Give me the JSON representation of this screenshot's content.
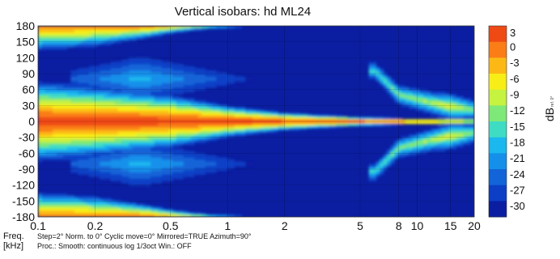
{
  "chart_data": {
    "type": "heatmap",
    "title": "Vertical isobars: hd ML24",
    "xlabel": "Freq. [kHz]",
    "xlabel_line1": "Freq.",
    "xlabel_line2": "[kHz]",
    "x_scale": "log",
    "xlim": [
      0.1,
      20
    ],
    "x_ticks": [
      0.1,
      0.2,
      0.5,
      1,
      2,
      5,
      8,
      10,
      15,
      20
    ],
    "x_tick_labels": [
      "0.1",
      "0.2",
      "0.5",
      "1",
      "2",
      "5",
      "8",
      "10",
      "15",
      "20"
    ],
    "ylim": [
      -180,
      180
    ],
    "y_ticks": [
      180,
      150,
      120,
      90,
      60,
      30,
      0,
      -30,
      -60,
      -90,
      -120,
      -150,
      -180
    ],
    "y_tick_labels": [
      "180",
      "150",
      "120",
      "90",
      "60",
      "30",
      "0",
      "-30",
      "-60",
      "-90",
      "-120",
      "-150",
      "-180"
    ],
    "colorbar": {
      "label": "dB",
      "label_suffix": "ref. 0°",
      "levels": [
        3,
        0,
        -3,
        -6,
        -9,
        -12,
        -15,
        -18,
        -21,
        -24,
        -27,
        -30
      ],
      "level_labels": [
        "3",
        "0",
        "-3",
        "-6",
        "-9",
        "-12",
        "-15",
        "-18",
        "-21",
        "-24",
        "-27",
        "-30"
      ],
      "colors": [
        "#ef4a14",
        "#fa7d17",
        "#fcb915",
        "#f7ee18",
        "#c6f240",
        "#7ee878",
        "#3fdcc4",
        "#1ab8ee",
        "#1590ea",
        "#1264d8",
        "#0c3fc6",
        "#0b1ea2"
      ]
    },
    "grid": true,
    "bands": [
      {
        "name": "on-axis lobe",
        "points": [
          [
            0.1,
            45,
            1
          ],
          [
            0.2,
            40,
            1
          ],
          [
            0.5,
            30,
            1.5
          ],
          [
            1,
            18,
            2.5
          ],
          [
            2,
            10,
            4
          ],
          [
            5,
            5,
            4
          ],
          [
            10,
            3,
            2
          ],
          [
            20,
            2,
            1.5
          ]
        ],
        "peak_level": 3
      },
      {
        "name": "rear lobe",
        "points": [
          [
            0.1,
            30,
            1
          ],
          [
            0.2,
            25,
            2
          ],
          [
            0.5,
            10,
            8
          ],
          [
            0.8,
            5,
            14
          ]
        ],
        "peak_level": 0
      },
      {
        "name": "high-frequency side lobe",
        "points": [
          [
            6,
            95,
            -15
          ],
          [
            8,
            50,
            -12
          ],
          [
            12,
            35,
            -9
          ],
          [
            15,
            28,
            -6
          ],
          [
            20,
            22,
            -12
          ]
        ],
        "peak_level": -6
      }
    ]
  },
  "footer": {
    "line1": "Step=2°   Norm. to 0°   Cyclic move=0°   Mirrored=TRUE   Azimuth=90°",
    "line2": "Proc.: Smooth: continuous log 1/3oct    Win.: OFF"
  }
}
